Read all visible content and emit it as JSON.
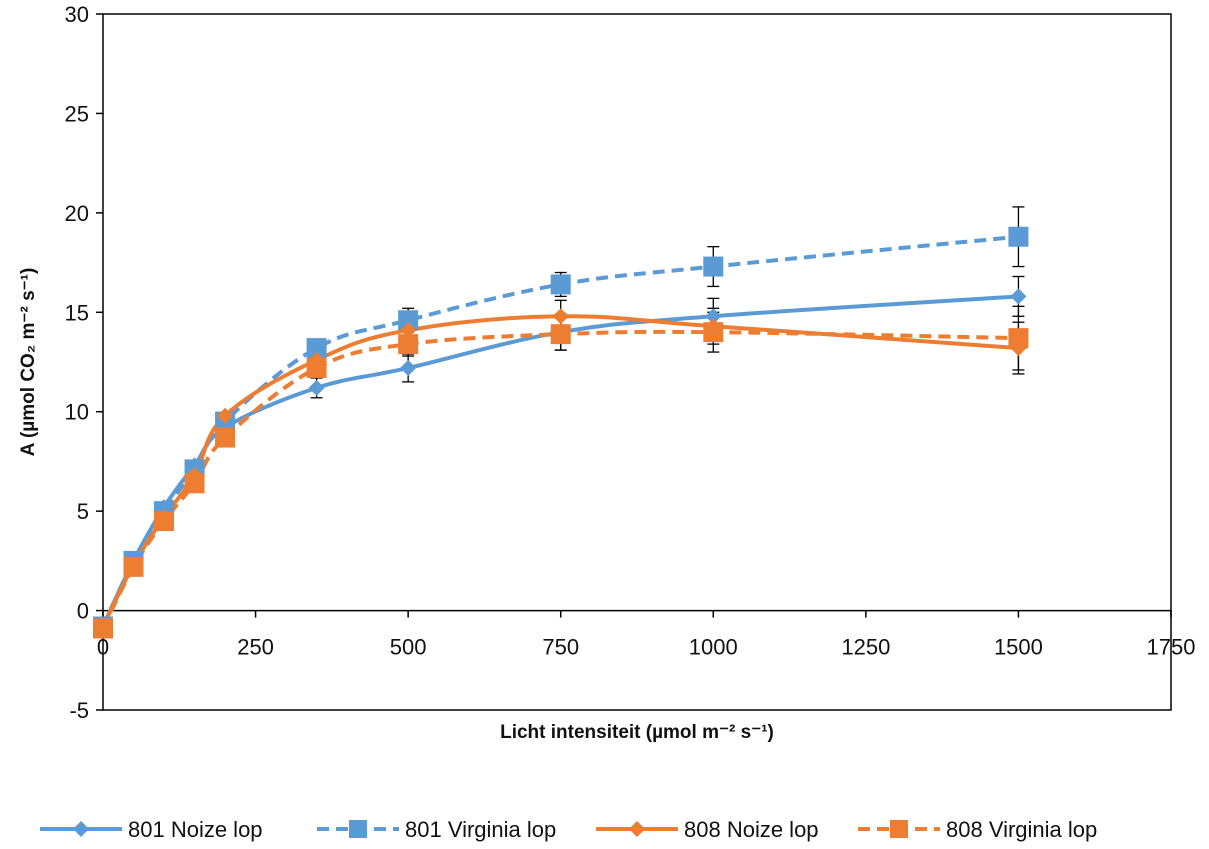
{
  "chart_data": {
    "type": "line",
    "title": "",
    "xlabel": "Licht intensiteit (µmol m⁻² s⁻¹)",
    "ylabel": "A (µmol CO₂ m⁻² s⁻¹)",
    "xlim": [
      0,
      1750
    ],
    "ylim": [
      -5,
      30
    ],
    "x_ticks": [
      "0",
      "250",
      "500",
      "750",
      "1000",
      "1250",
      "1500",
      "1750"
    ],
    "y_ticks": [
      "-5",
      "0",
      "5",
      "10",
      "15",
      "20",
      "25",
      "30"
    ],
    "grid": false,
    "legend_position": "bottom",
    "x": [
      0,
      50,
      100,
      150,
      200,
      350,
      500,
      750,
      1000,
      1500
    ],
    "series": [
      {
        "name": "801 Noize lop",
        "color": "#5B9BD5",
        "line_style": "solid",
        "marker": "diamond",
        "values": [
          -0.8,
          2.5,
          5.2,
          7.3,
          9.2,
          11.2,
          12.2,
          14.0,
          14.8,
          15.8
        ],
        "errors": [
          0,
          0,
          0,
          0,
          0,
          0.5,
          0.7,
          0.9,
          0.9,
          1.0
        ]
      },
      {
        "name": "801 Virginia lop",
        "color": "#5B9BD5",
        "line_style": "dashed",
        "marker": "square",
        "values": [
          -0.8,
          2.5,
          5.0,
          7.1,
          9.5,
          13.2,
          14.6,
          16.4,
          17.3,
          18.8
        ],
        "errors": [
          0,
          0,
          0,
          0,
          0,
          0.4,
          0.6,
          0.6,
          1.0,
          1.5
        ]
      },
      {
        "name": "808 Noize lop",
        "color": "#ED7D31",
        "line_style": "solid",
        "marker": "diamond",
        "values": [
          -0.8,
          2.3,
          4.7,
          6.8,
          9.8,
          12.6,
          14.1,
          14.8,
          14.3,
          13.2
        ],
        "errors": [
          0,
          0,
          0,
          0,
          0,
          0.6,
          0.7,
          0.8,
          0.9,
          1.3
        ]
      },
      {
        "name": "808 Virginia lop",
        "color": "#ED7D31",
        "line_style": "dashed",
        "marker": "square",
        "values": [
          -0.9,
          2.2,
          4.5,
          6.4,
          8.7,
          12.2,
          13.4,
          13.9,
          14.0,
          13.7
        ],
        "errors": [
          0,
          0,
          0,
          0,
          0,
          0.5,
          0.6,
          0.8,
          1.0,
          1.6
        ]
      }
    ]
  }
}
